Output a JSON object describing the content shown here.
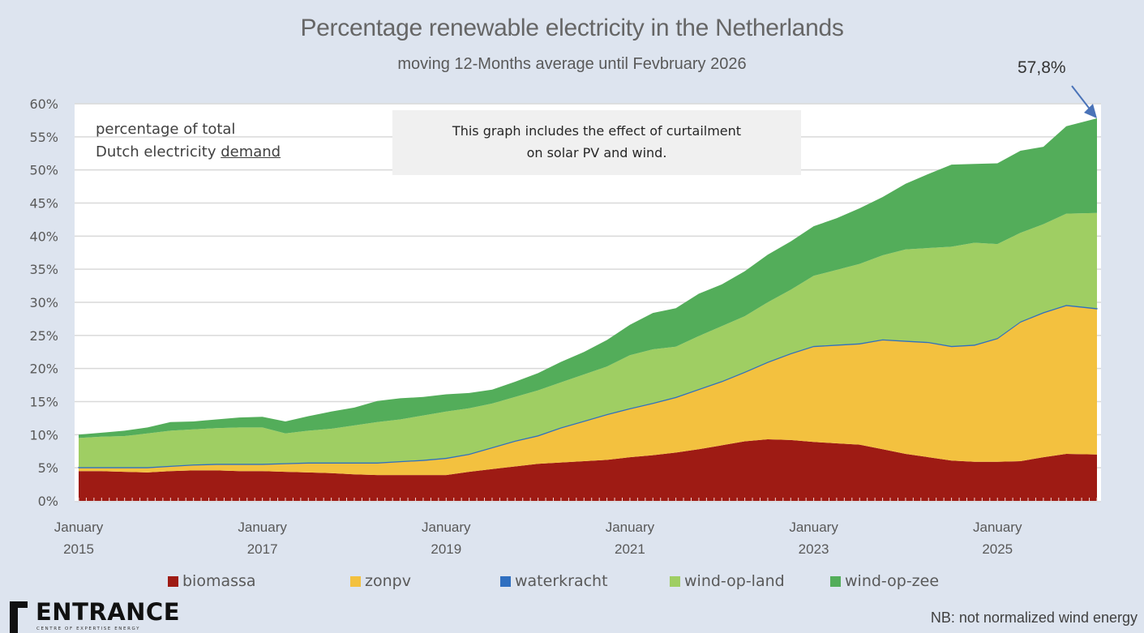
{
  "chart_data": {
    "type": "area",
    "stacked": true,
    "title": "Percentage renewable electricity in the Netherlands",
    "subtitle": "moving 12-Months average until Fevbruary 2026",
    "xlabel": "",
    "ylabel": "",
    "ylim": [
      0,
      60
    ],
    "yticks": [
      "0%",
      "5%",
      "10%",
      "15%",
      "20%",
      "25%",
      "30%",
      "35%",
      "40%",
      "45%",
      "50%",
      "55%",
      "60%"
    ],
    "ytick_values": [
      0,
      5,
      10,
      15,
      20,
      25,
      30,
      35,
      40,
      45,
      50,
      55,
      60
    ],
    "xtick_labels": [
      {
        "line1": "January",
        "line2": "2015",
        "month_index": 0
      },
      {
        "line1": "January",
        "line2": "2017",
        "month_index": 24
      },
      {
        "line1": "January",
        "line2": "2019",
        "month_index": 48
      },
      {
        "line1": "January",
        "line2": "2021",
        "month_index": 72
      },
      {
        "line1": "January",
        "line2": "2023",
        "month_index": 96
      },
      {
        "line1": "January",
        "line2": "2025",
        "month_index": 120
      }
    ],
    "x_range_months": [
      0,
      133
    ],
    "grid": true,
    "legend_position": "bottom",
    "x": [
      0,
      3,
      6,
      9,
      12,
      15,
      18,
      21,
      24,
      27,
      30,
      33,
      36,
      39,
      42,
      45,
      48,
      51,
      54,
      57,
      60,
      63,
      66,
      69,
      72,
      75,
      78,
      81,
      84,
      87,
      90,
      93,
      96,
      99,
      102,
      105,
      108,
      111,
      114,
      117,
      120,
      123,
      126,
      129,
      133
    ],
    "series": [
      {
        "name": "biomassa",
        "color": "#9e1b14",
        "values": [
          4.5,
          4.5,
          4.4,
          4.3,
          4.5,
          4.6,
          4.6,
          4.5,
          4.5,
          4.4,
          4.3,
          4.2,
          4.0,
          3.9,
          3.9,
          3.9,
          3.9,
          4.4,
          4.8,
          5.2,
          5.6,
          5.8,
          6.0,
          6.2,
          6.6,
          6.9,
          7.3,
          7.8,
          8.4,
          9.0,
          9.3,
          9.2,
          8.9,
          8.7,
          8.5,
          7.8,
          7.1,
          6.6,
          6.1,
          5.9,
          5.9,
          6.0,
          6.6,
          7.1,
          7.0
        ]
      },
      {
        "name": "zonpv",
        "color": "#f3c13f",
        "values": [
          0.5,
          0.5,
          0.6,
          0.7,
          0.7,
          0.8,
          0.9,
          1.0,
          1.0,
          1.2,
          1.4,
          1.5,
          1.7,
          1.8,
          2.0,
          2.2,
          2.5,
          2.6,
          3.2,
          3.8,
          4.2,
          5.2,
          6.0,
          6.8,
          7.3,
          7.8,
          8.3,
          9.0,
          9.6,
          10.4,
          11.6,
          13.0,
          14.4,
          14.8,
          15.2,
          16.5,
          17.0,
          17.3,
          17.2,
          17.6,
          18.6,
          21.0,
          21.8,
          22.4,
          22.0
        ]
      },
      {
        "name": "waterkracht",
        "color": "#2f6fc0",
        "values": [
          0.1,
          0.1,
          0.1,
          0.1,
          0.1,
          0.1,
          0.1,
          0.1,
          0.1,
          0.1,
          0.1,
          0.1,
          0.1,
          0.1,
          0.1,
          0.1,
          0.1,
          0.1,
          0.1,
          0.1,
          0.1,
          0.1,
          0.1,
          0.1,
          0.1,
          0.1,
          0.1,
          0.1,
          0.1,
          0.1,
          0.1,
          0.1,
          0.1,
          0.1,
          0.1,
          0.1,
          0.1,
          0.1,
          0.1,
          0.1,
          0.1,
          0.1,
          0.1,
          0.1,
          0.1
        ]
      },
      {
        "name": "wind-op-land",
        "color": "#9fce63",
        "values": [
          4.4,
          4.6,
          4.7,
          5.1,
          5.3,
          5.3,
          5.4,
          5.5,
          5.5,
          4.5,
          4.8,
          5.1,
          5.6,
          6.1,
          6.3,
          6.7,
          7.0,
          6.9,
          6.6,
          6.6,
          6.8,
          6.8,
          7.0,
          7.2,
          8.0,
          8.1,
          7.6,
          8.0,
          8.3,
          8.4,
          9.0,
          9.6,
          10.6,
          11.3,
          12.0,
          12.7,
          13.8,
          14.2,
          15.0,
          15.4,
          14.2,
          13.4,
          13.3,
          13.8,
          14.4
        ]
      },
      {
        "name": "wind-op-zee",
        "color": "#53ad5a",
        "values": [
          0.5,
          0.6,
          0.8,
          0.9,
          1.3,
          1.2,
          1.3,
          1.5,
          1.6,
          1.8,
          2.2,
          2.6,
          2.7,
          3.2,
          3.2,
          2.8,
          2.6,
          2.3,
          2.1,
          2.3,
          2.6,
          3.1,
          3.4,
          4.0,
          4.6,
          5.5,
          5.8,
          6.4,
          6.3,
          6.8,
          7.2,
          7.3,
          7.5,
          7.8,
          8.4,
          8.8,
          9.9,
          11.2,
          12.4,
          11.9,
          12.2,
          12.4,
          11.7,
          13.2,
          14.3
        ]
      }
    ],
    "annotations": [
      {
        "text": "57,8%",
        "target_month_index": 133,
        "target_value": 57.8,
        "style": "arrow"
      }
    ]
  },
  "header": {
    "title": "Percentage renewable electricity in the Netherlands",
    "subtitle": "moving 12-Months average until Fevbruary 2026"
  },
  "callout": {
    "value": "57,8%"
  },
  "notes": {
    "demand_line1": "percentage of total",
    "demand_line2_prefix": "Dutch electricity ",
    "demand_line2_underlined": "demand",
    "curtailment_line1": "This graph includes the effect of curtailment",
    "curtailment_line2": "on solar PV and wind."
  },
  "legend": [
    {
      "label": "biomassa",
      "color": "#9e1b14"
    },
    {
      "label": "zonpv",
      "color": "#f3c13f"
    },
    {
      "label": "waterkracht",
      "color": "#2f6fc0"
    },
    {
      "label": "wind-op-land",
      "color": "#9fce63"
    },
    {
      "label": "wind-op-zee",
      "color": "#53ad5a"
    }
  ],
  "logo": {
    "name": "ENTRANCE",
    "tagline": "CENTRE OF EXPERTISE ENERGY"
  },
  "footnote": "NB: not normalized  wind energy",
  "colors": {
    "background": "#dde4ef",
    "plot_background": "#ffffff",
    "gridline": "#d9d9d9",
    "arrow": "#4a73b8"
  }
}
